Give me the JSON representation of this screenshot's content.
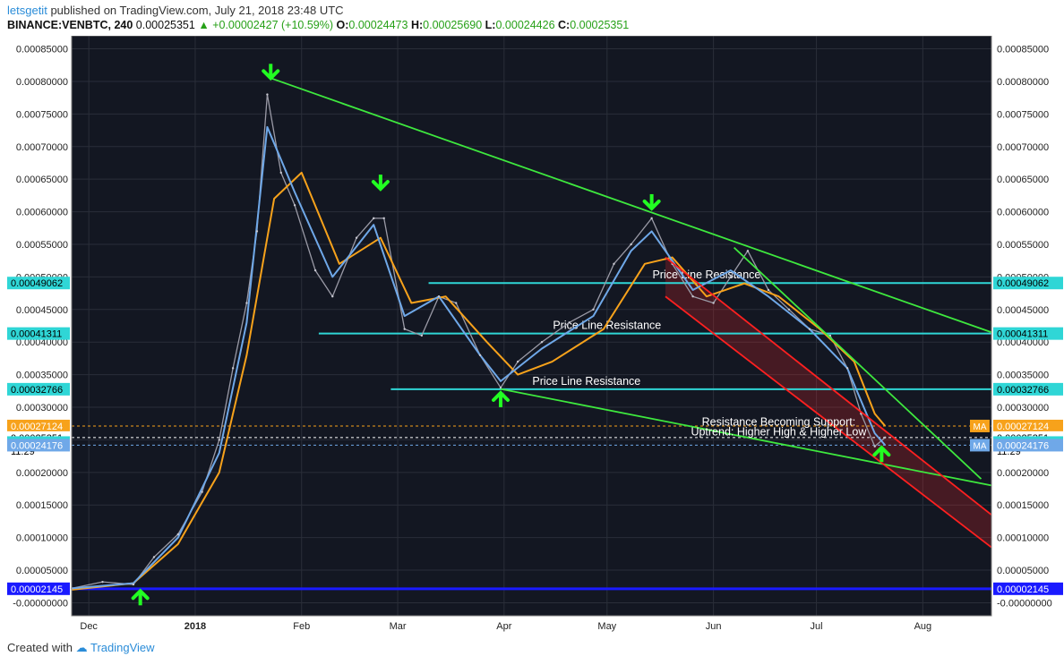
{
  "header": {
    "author": "letsgetit",
    "published_text": "published on TradingView.com, July 21, 2018 23:48 UTC",
    "symbol": "BINANCE:VENBTC, 240",
    "last": "0.00025351",
    "change": "+0.00002427 (+10.59%)",
    "o_label": "O:",
    "o": "0.00024473",
    "h_label": "H:",
    "h": "0.00025690",
    "l_label": "L:",
    "l": "0.00024426",
    "c_label": "C:",
    "c": "0.00025351"
  },
  "footer": {
    "created_with": "Created with",
    "brand": "TradingView"
  },
  "colors": {
    "background": "#131722",
    "grid": "#2a2e39",
    "ma_fast": "#6fa8e8",
    "ma_slow": "#f7a21b",
    "trend": "#3ee83e",
    "resistance": "#2fd6d6",
    "channel": "#ff2020",
    "support_blue": "#1a1aff",
    "arrow": "#22ff22"
  },
  "chart_data": {
    "type": "line",
    "title": "",
    "xlabel": "",
    "ylabel": "",
    "ylim": [
      -2e-05,
      0.00087
    ],
    "x_ticks": [
      "Dec",
      "2018",
      "Feb",
      "Mar",
      "Apr",
      "May",
      "Jun",
      "Jul",
      "Aug"
    ],
    "y_ticks": [
      "0.00085000",
      "0.00080000",
      "0.00075000",
      "0.00070000",
      "0.00065000",
      "0.00060000",
      "0.00055000",
      "0.00050000",
      "0.00045000",
      "0.00040000",
      "0.00035000",
      "0.00030000",
      "0.00025000",
      "0.00020000",
      "0.00015000",
      "0.00010000",
      "0.00005000",
      "-0.00000000"
    ],
    "price_series": {
      "name": "",
      "x": [
        "2017-11-26",
        "2017-12-05",
        "2017-12-14",
        "2017-12-20",
        "2017-12-27",
        "2018-01-03",
        "2018-01-08",
        "2018-01-12",
        "2018-01-16",
        "2018-01-19",
        "2018-01-22",
        "2018-01-26",
        "2018-01-30",
        "2018-02-05",
        "2018-02-10",
        "2018-02-17",
        "2018-02-22",
        "2018-02-25",
        "2018-03-03",
        "2018-03-08",
        "2018-03-13",
        "2018-03-18",
        "2018-03-25",
        "2018-03-31",
        "2018-04-05",
        "2018-04-12",
        "2018-04-20",
        "2018-04-27",
        "2018-05-03",
        "2018-05-08",
        "2018-05-14",
        "2018-05-20",
        "2018-05-26",
        "2018-06-01",
        "2018-06-06",
        "2018-06-11",
        "2018-06-17",
        "2018-06-23",
        "2018-06-29",
        "2018-07-05",
        "2018-07-10",
        "2018-07-14",
        "2018-07-18",
        "2018-07-21"
      ],
      "values": [
        2.2e-05,
        3.2e-05,
        2.8e-05,
        7e-05,
        0.000105,
        0.00017,
        0.00025,
        0.00036,
        0.00046,
        0.00057,
        0.00078,
        0.00066,
        0.00061,
        0.00051,
        0.00047,
        0.00056,
        0.00059,
        0.00059,
        0.00042,
        0.00041,
        0.00047,
        0.00046,
        0.00038,
        0.00033,
        0.00037,
        0.0004,
        0.00043,
        0.00045,
        0.00052,
        0.00055,
        0.00059,
        0.00052,
        0.00047,
        0.00046,
        0.0005,
        0.00054,
        0.00048,
        0.00045,
        0.00042,
        0.00041,
        0.00036,
        0.00029,
        0.00024,
        0.00025351
      ]
    },
    "ma_fast": {
      "name": "",
      "x": [
        "2017-11-26",
        "2017-12-14",
        "2017-12-27",
        "2018-01-08",
        "2018-01-16",
        "2018-01-22",
        "2018-01-30",
        "2018-02-10",
        "2018-02-22",
        "2018-03-03",
        "2018-03-13",
        "2018-03-25",
        "2018-03-31",
        "2018-04-12",
        "2018-04-27",
        "2018-05-08",
        "2018-05-14",
        "2018-05-26",
        "2018-06-06",
        "2018-06-17",
        "2018-06-29",
        "2018-07-10",
        "2018-07-18",
        "2018-07-21"
      ],
      "values": [
        2.2e-05,
        3e-05,
        0.0001,
        0.00023,
        0.00043,
        0.00073,
        0.00063,
        0.0005,
        0.00058,
        0.00044,
        0.00047,
        0.00038,
        0.00034,
        0.00039,
        0.00044,
        0.00054,
        0.00057,
        0.00048,
        0.00051,
        0.00047,
        0.00042,
        0.00036,
        0.00026,
        0.000242
      ]
    },
    "ma_slow": {
      "name": "",
      "x": [
        "2017-11-26",
        "2017-12-14",
        "2017-12-27",
        "2018-01-08",
        "2018-01-16",
        "2018-01-24",
        "2018-02-01",
        "2018-02-12",
        "2018-02-24",
        "2018-03-05",
        "2018-03-15",
        "2018-03-27",
        "2018-04-05",
        "2018-04-15",
        "2018-04-30",
        "2018-05-12",
        "2018-05-20",
        "2018-05-30",
        "2018-06-10",
        "2018-06-20",
        "2018-07-02",
        "2018-07-12",
        "2018-07-18",
        "2018-07-21"
      ],
      "values": [
        2e-05,
        3e-05,
        9e-05,
        0.0002,
        0.00038,
        0.00062,
        0.00066,
        0.00052,
        0.00056,
        0.00046,
        0.00047,
        0.0004,
        0.00035,
        0.00037,
        0.00042,
        0.00052,
        0.00053,
        0.00047,
        0.00049,
        0.00047,
        0.00042,
        0.00037,
        0.00029,
        0.00027124
      ]
    },
    "horizontal_levels": [
      {
        "value": 0.00049062,
        "label": "0.00049062",
        "from": "2018-03-10",
        "kind": "resistance",
        "text": "Price Line Resistance",
        "text_x": "2018-05-30"
      },
      {
        "value": 0.00041311,
        "label": "0.00041311",
        "from": "2018-02-06",
        "kind": "resistance",
        "text": "Price Line Resistance",
        "text_x": "2018-05-01"
      },
      {
        "value": 0.00032766,
        "label": "0.00032766",
        "from": "2018-02-27",
        "kind": "resistance",
        "text": "Price Line Resistance",
        "text_x": "2018-04-25"
      },
      {
        "value": 2.145e-05,
        "label": "0.00002145",
        "from": "2017-11-26",
        "kind": "blue"
      }
    ],
    "price_labels": [
      {
        "value": 0.00027124,
        "label": "0.00027124",
        "kind": "ma_slow",
        "tag": "MA"
      },
      {
        "value": 0.00025351,
        "label": "0.00025351",
        "kind": "last",
        "time": "11:29"
      },
      {
        "value": 0.00024583,
        "label": "0.00024583",
        "kind": "resistance"
      },
      {
        "value": 0.00024176,
        "label": "0.00024176",
        "kind": "ma_fast",
        "tag": "MA"
      }
    ],
    "trendlines": [
      {
        "from": [
          "2018-01-23",
          0.000805
        ],
        "to": [
          "2018-08-21",
          0.000415
        ],
        "kind": "trend"
      },
      {
        "from": [
          "2018-03-31",
          0.000328
        ],
        "to": [
          "2018-08-21",
          0.00018
        ],
        "kind": "trend"
      },
      {
        "from": [
          "2018-06-07",
          0.000545
        ],
        "to": [
          "2018-08-18",
          0.00019
        ],
        "kind": "trend"
      },
      {
        "from": [
          "2018-05-18",
          0.00053
        ],
        "to": [
          "2018-08-21",
          0.000135
        ],
        "kind": "channel"
      },
      {
        "from": [
          "2018-05-18",
          0.00047
        ],
        "to": [
          "2018-08-21",
          8.5e-05
        ],
        "kind": "channel"
      }
    ],
    "annotations": [
      {
        "text": "Resistance Becoming Support:",
        "x": "2018-06-20",
        "y": 0.000272
      },
      {
        "text": "Uptrend: Higher High & Higher Low",
        "x": "2018-06-20",
        "y": 0.000257
      }
    ],
    "arrows": [
      {
        "x": "2018-01-23",
        "y": 0.000805,
        "dir": "down"
      },
      {
        "x": "2018-02-24",
        "y": 0.000635,
        "dir": "down"
      },
      {
        "x": "2018-05-14",
        "y": 0.000605,
        "dir": "down"
      },
      {
        "x": "2017-12-16",
        "y": 1.8e-05,
        "dir": "up"
      },
      {
        "x": "2018-03-31",
        "y": 0.000322,
        "dir": "up"
      },
      {
        "x": "2018-07-20",
        "y": 0.000238,
        "dir": "up"
      }
    ]
  }
}
